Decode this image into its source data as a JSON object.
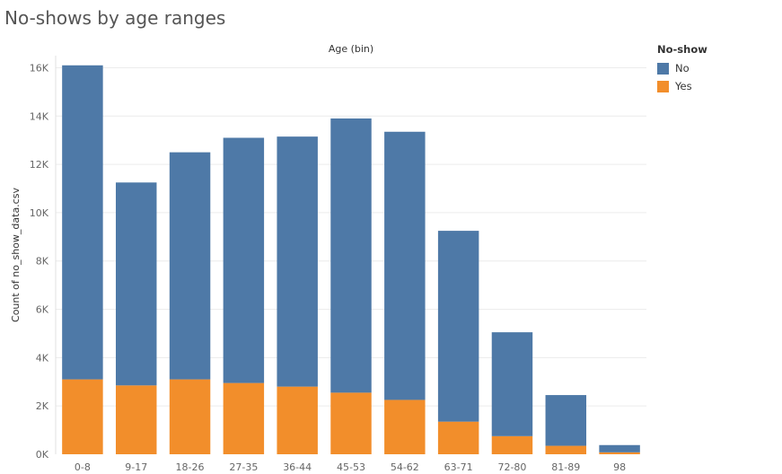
{
  "title": "No-shows by age ranges",
  "legend": {
    "title": "No-show",
    "items": [
      {
        "label": "No",
        "color": "#4e79a7"
      },
      {
        "label": "Yes",
        "color": "#f28e2b"
      }
    ]
  },
  "chart_data": {
    "type": "bar",
    "stacked": true,
    "title": "No-shows by age ranges",
    "xlabel": "Age (bin)",
    "ylabel": "Count of no_show_data.csv",
    "ylim": [
      0,
      16500
    ],
    "yticks": [
      0,
      2000,
      4000,
      6000,
      8000,
      10000,
      12000,
      14000,
      16000
    ],
    "ytick_labels": [
      "0K",
      "2K",
      "4K",
      "6K",
      "8K",
      "10K",
      "12K",
      "14K",
      "16K"
    ],
    "categories": [
      "0-8",
      "9-17",
      "18-26",
      "27-35",
      "36-44",
      "45-53",
      "54-62",
      "63-71",
      "72-80",
      "81-89",
      "98"
    ],
    "series": [
      {
        "name": "Yes",
        "color": "#f28e2b",
        "values": [
          3100,
          2850,
          3100,
          2950,
          2800,
          2550,
          2250,
          1350,
          750,
          350,
          80
        ]
      },
      {
        "name": "No",
        "color": "#4e79a7",
        "values": [
          13000,
          8400,
          9400,
          10150,
          10350,
          11350,
          11100,
          7900,
          4300,
          2100,
          300
        ]
      }
    ],
    "grid": true,
    "legend_position": "top-right"
  }
}
